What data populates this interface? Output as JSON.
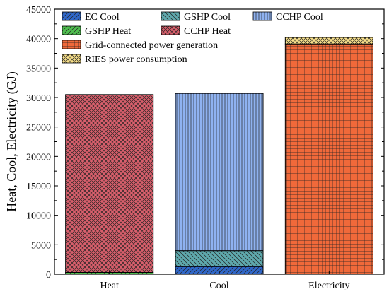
{
  "chart_data": {
    "type": "bar",
    "stacked": true,
    "categories": [
      "Heat",
      "Cool",
      "Electricity"
    ],
    "ylabel": "Heat, Cool, Electricity (GJ)",
    "xlabel": "",
    "ylim": [
      0,
      45000
    ],
    "yticks": [
      0,
      5000,
      10000,
      15000,
      20000,
      25000,
      30000,
      35000,
      40000,
      45000
    ],
    "series": [
      {
        "name": "EC Cool",
        "color": "#2f67c9",
        "pattern": "diag-right",
        "values": [
          0,
          1300,
          0
        ]
      },
      {
        "name": "GSHP  Cool",
        "color": "#5fa9ad",
        "pattern": "diag-left",
        "values": [
          0,
          2700,
          0
        ]
      },
      {
        "name": "CCHP Cool",
        "color": "#8fb2f0",
        "pattern": "vertical",
        "values": [
          0,
          26700,
          0
        ]
      },
      {
        "name": "GSHP Heat",
        "color": "#4fbf4f",
        "pattern": "diag-right",
        "values": [
          300,
          0,
          0
        ]
      },
      {
        "name": "CCHP Heat",
        "color": "#d95f6c",
        "pattern": "crosshatch",
        "values": [
          30200,
          0,
          0
        ]
      },
      {
        "name": "Grid-connected power generation",
        "color": "#f0693a",
        "pattern": "grid",
        "values": [
          0,
          0,
          39100
        ]
      },
      {
        "name": "RIES power consumption",
        "color": "#f8e08a",
        "pattern": "crosshatch",
        "values": [
          0,
          0,
          1100
        ]
      }
    ],
    "legend": {
      "placement": "top-left",
      "columns": 3
    },
    "grid": false
  }
}
